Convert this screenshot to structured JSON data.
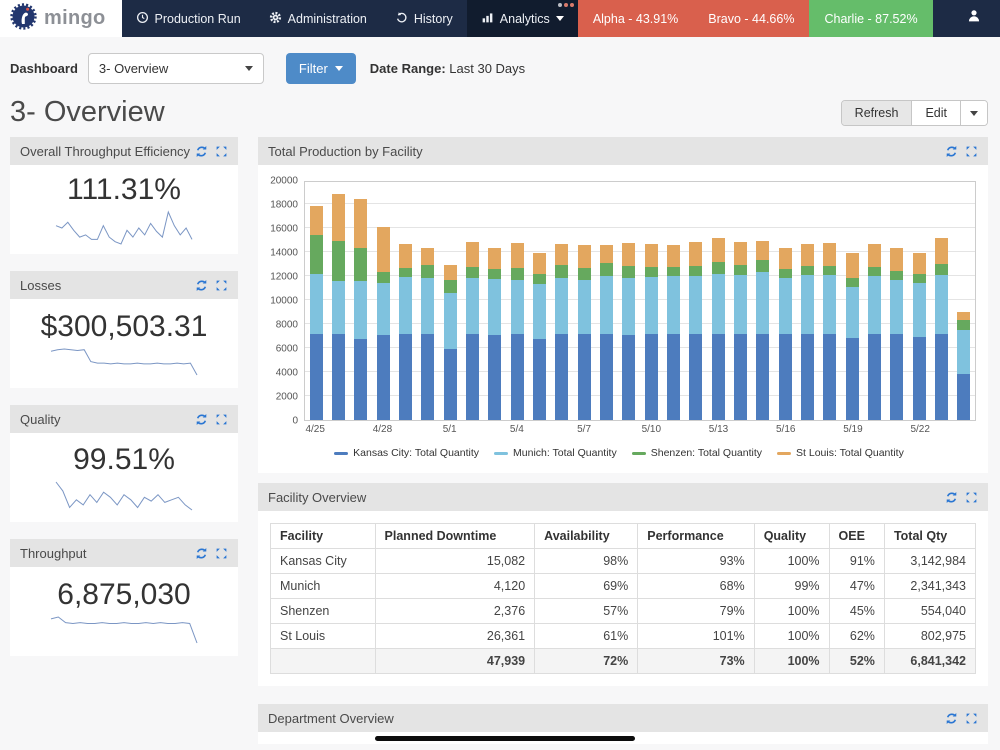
{
  "navbar": {
    "brand": "mingo",
    "items": [
      {
        "label": "Production Run",
        "icon": "clock"
      },
      {
        "label": "Administration",
        "icon": "gear"
      },
      {
        "label": "History",
        "icon": "history"
      }
    ],
    "analytics_label": "Analytics",
    "dots_colors": [
      "#b9bcc4",
      "#d97b6c",
      "#d97b6c"
    ],
    "machines": [
      {
        "label": "Alpha - 43.91%",
        "color": "#d9604d"
      },
      {
        "label": "Bravo - 44.66%",
        "color": "#d9604d"
      },
      {
        "label": "Charlie - 87.52%",
        "color": "#65bd6a"
      }
    ]
  },
  "toolbar": {
    "dashboard_label": "Dashboard",
    "dashboard_value": "3- Overview",
    "filter_label": "Filter",
    "date_range_label": "Date Range:",
    "date_range_value": "Last 30 Days"
  },
  "page": {
    "title": "3- Overview",
    "refresh_label": "Refresh",
    "edit_label": "Edit"
  },
  "kpi_cards": [
    {
      "title": "Overall Throughput Efficiency",
      "value": "111.31%",
      "spark": [
        52,
        50,
        55,
        48,
        42,
        44,
        40,
        40,
        52,
        42,
        38,
        36,
        48,
        42,
        50,
        44,
        54,
        47,
        42,
        64,
        52,
        44,
        50,
        40
      ]
    },
    {
      "title": "Losses",
      "value": "$300,503.31",
      "spark": [
        58,
        60,
        61,
        60,
        59,
        60,
        44,
        42,
        42,
        41,
        42,
        41,
        41,
        42,
        41,
        41,
        42,
        41,
        41,
        42,
        41,
        42,
        26
      ]
    },
    {
      "title": "Quality",
      "value": "99.51%",
      "spark": [
        62,
        55,
        42,
        48,
        44,
        52,
        46,
        54,
        50,
        44,
        52,
        48,
        42,
        50,
        47,
        52,
        46,
        48,
        50,
        44,
        40
      ]
    },
    {
      "title": "Throughput",
      "value": "6,875,030",
      "spark": [
        56,
        58,
        52,
        51,
        52,
        51,
        51,
        52,
        51,
        51,
        52,
        51,
        51,
        52,
        51,
        52,
        51,
        51,
        52,
        51,
        30
      ]
    }
  ],
  "chart_data": {
    "type": "bar",
    "stacked": true,
    "title": "Total Production by Facility",
    "x": [
      "4/25",
      "4/26",
      "4/27",
      "4/28",
      "4/29",
      "4/30",
      "5/1",
      "5/2",
      "5/3",
      "5/4",
      "5/5",
      "5/6",
      "5/7",
      "5/8",
      "5/9",
      "5/10",
      "5/11",
      "5/12",
      "5/13",
      "5/14",
      "5/15",
      "5/16",
      "5/17",
      "5/18",
      "5/19",
      "5/20",
      "5/21",
      "5/22",
      "5/23",
      "5/24"
    ],
    "tick_every": 3,
    "ylim": [
      0,
      20000
    ],
    "ytick_step": 2000,
    "grid": true,
    "legend_position": "bottom",
    "series": [
      {
        "name": "Kansas City: Total Quantity",
        "color": "#4d7cbe",
        "values": [
          7200,
          7200,
          6750,
          7100,
          7200,
          7200,
          5950,
          7200,
          7100,
          7200,
          6750,
          7200,
          7200,
          7200,
          7100,
          7150,
          7150,
          7150,
          7200,
          7150,
          7200,
          7150,
          7150,
          7150,
          6800,
          7150,
          7150,
          6900,
          7150,
          3800
        ]
      },
      {
        "name": "Munich: Total Quantity",
        "color": "#7fc2de",
        "values": [
          4950,
          4350,
          4800,
          4300,
          4700,
          4650,
          4650,
          4600,
          4650,
          4450,
          4550,
          4650,
          4450,
          4800,
          4700,
          4800,
          4850,
          4850,
          5000,
          4950,
          5100,
          4650,
          4950,
          4950,
          4300,
          4850,
          4550,
          4500,
          4950,
          3700
        ]
      },
      {
        "name": "Shenzen: Total Quantity",
        "color": "#66a95e",
        "values": [
          3300,
          3350,
          2800,
          950,
          750,
          1050,
          1050,
          950,
          850,
          1000,
          850,
          1050,
          1050,
          1050,
          1000,
          800,
          750,
          800,
          1000,
          800,
          1000,
          800,
          750,
          700,
          700,
          750,
          750,
          800,
          900,
          800
        ]
      },
      {
        "name": "St Louis: Total Quantity",
        "color": "#e3a75f",
        "values": [
          2400,
          3900,
          4050,
          3750,
          2050,
          1450,
          1300,
          2100,
          1750,
          2100,
          1800,
          1800,
          1900,
          1550,
          1950,
          1900,
          1800,
          2000,
          2000,
          1900,
          1600,
          1700,
          1850,
          1950,
          2150,
          1950,
          1900,
          1700,
          2200,
          700
        ]
      }
    ]
  },
  "facility_table": {
    "title": "Facility Overview",
    "headers": [
      "Facility",
      "Planned Downtime",
      "Availability",
      "Performance",
      "Quality",
      "OEE",
      "Total Qty"
    ],
    "rows": [
      [
        "Kansas City",
        "15,082",
        "98%",
        "93%",
        "100%",
        "91%",
        "3,142,984"
      ],
      [
        "Munich",
        "4,120",
        "69%",
        "68%",
        "99%",
        "47%",
        "2,341,343"
      ],
      [
        "Shenzen",
        "2,376",
        "57%",
        "79%",
        "100%",
        "45%",
        "554,040"
      ],
      [
        "St Louis",
        "26,361",
        "61%",
        "101%",
        "100%",
        "62%",
        "802,975"
      ]
    ],
    "total_row": [
      "",
      "47,939",
      "72%",
      "73%",
      "100%",
      "52%",
      "6,841,342"
    ]
  },
  "department_panel": {
    "title": "Department Overview"
  },
  "colors": {
    "navbar_bg": "#1d2b45",
    "accent_blue": "#2a76d2",
    "filter_blue": "#4e8bc8",
    "spark_line": "#7b96c4"
  }
}
